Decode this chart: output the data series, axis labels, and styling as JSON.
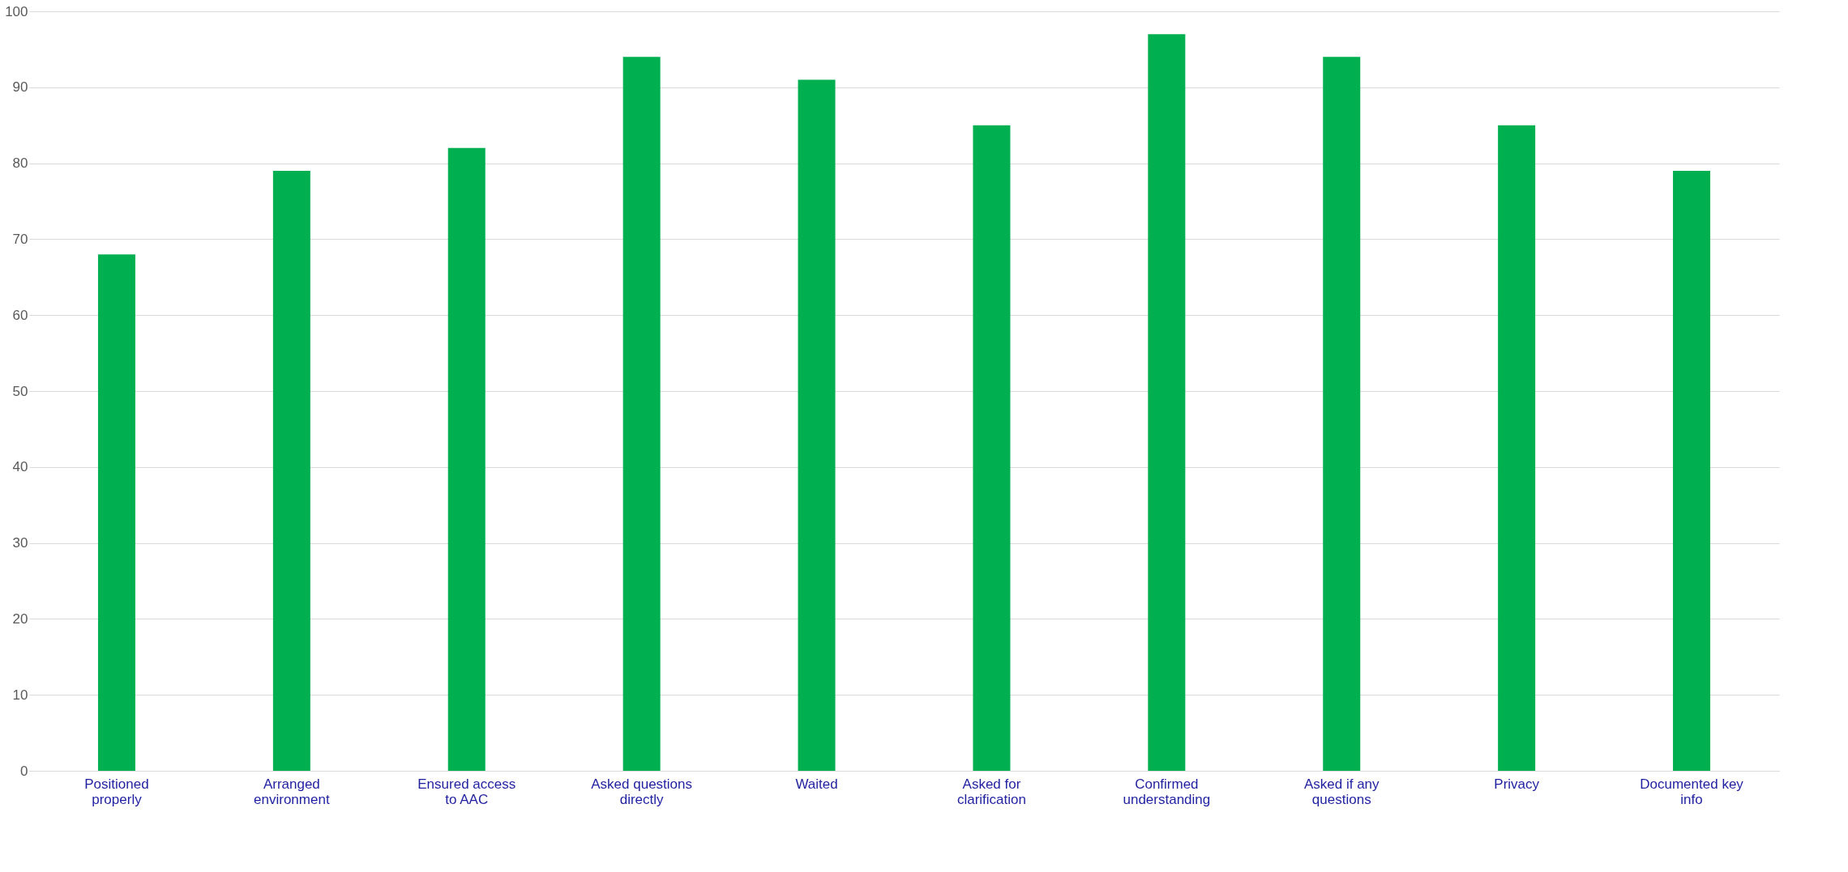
{
  "chart_data": {
    "type": "bar",
    "categories": [
      "Positioned properly",
      "Arranged environment",
      "Ensured access to AAC",
      "Asked questions directly",
      "Waited",
      "Asked for clarification",
      "Confirmed understanding",
      "Asked if any questions",
      "Privacy",
      "Documented key info"
    ],
    "values": [
      68,
      79,
      82,
      94,
      91,
      85,
      97,
      94,
      85,
      79
    ],
    "color": "#00b050",
    "ylim": [
      0,
      100
    ],
    "yticks": [
      0,
      10,
      20,
      30,
      40,
      50,
      60,
      70,
      80,
      90,
      100
    ],
    "grid": "y"
  }
}
